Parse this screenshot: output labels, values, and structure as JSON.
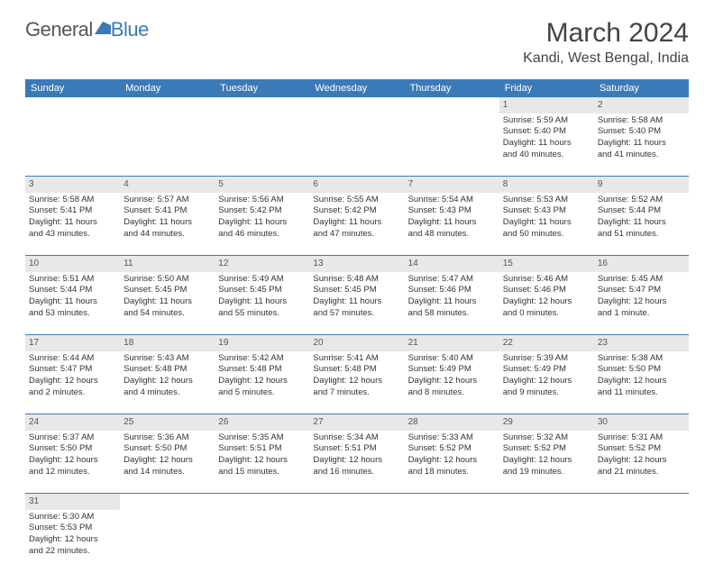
{
  "logo": {
    "text1": "General",
    "text2": "Blue"
  },
  "title": "March 2024",
  "location": "Kandi, West Bengal, India",
  "colors": {
    "header_bg": "#3b7ab8",
    "header_fg": "#ffffff",
    "daynum_bg": "#e8e8e8",
    "border": "#3b7ab8",
    "text": "#333333"
  },
  "weekdays": [
    "Sunday",
    "Monday",
    "Tuesday",
    "Wednesday",
    "Thursday",
    "Friday",
    "Saturday"
  ],
  "weeks": [
    [
      null,
      null,
      null,
      null,
      null,
      {
        "n": "1",
        "sr": "Sunrise: 5:59 AM",
        "ss": "Sunset: 5:40 PM",
        "dl1": "Daylight: 11 hours",
        "dl2": "and 40 minutes."
      },
      {
        "n": "2",
        "sr": "Sunrise: 5:58 AM",
        "ss": "Sunset: 5:40 PM",
        "dl1": "Daylight: 11 hours",
        "dl2": "and 41 minutes."
      }
    ],
    [
      {
        "n": "3",
        "sr": "Sunrise: 5:58 AM",
        "ss": "Sunset: 5:41 PM",
        "dl1": "Daylight: 11 hours",
        "dl2": "and 43 minutes."
      },
      {
        "n": "4",
        "sr": "Sunrise: 5:57 AM",
        "ss": "Sunset: 5:41 PM",
        "dl1": "Daylight: 11 hours",
        "dl2": "and 44 minutes."
      },
      {
        "n": "5",
        "sr": "Sunrise: 5:56 AM",
        "ss": "Sunset: 5:42 PM",
        "dl1": "Daylight: 11 hours",
        "dl2": "and 46 minutes."
      },
      {
        "n": "6",
        "sr": "Sunrise: 5:55 AM",
        "ss": "Sunset: 5:42 PM",
        "dl1": "Daylight: 11 hours",
        "dl2": "and 47 minutes."
      },
      {
        "n": "7",
        "sr": "Sunrise: 5:54 AM",
        "ss": "Sunset: 5:43 PM",
        "dl1": "Daylight: 11 hours",
        "dl2": "and 48 minutes."
      },
      {
        "n": "8",
        "sr": "Sunrise: 5:53 AM",
        "ss": "Sunset: 5:43 PM",
        "dl1": "Daylight: 11 hours",
        "dl2": "and 50 minutes."
      },
      {
        "n": "9",
        "sr": "Sunrise: 5:52 AM",
        "ss": "Sunset: 5:44 PM",
        "dl1": "Daylight: 11 hours",
        "dl2": "and 51 minutes."
      }
    ],
    [
      {
        "n": "10",
        "sr": "Sunrise: 5:51 AM",
        "ss": "Sunset: 5:44 PM",
        "dl1": "Daylight: 11 hours",
        "dl2": "and 53 minutes."
      },
      {
        "n": "11",
        "sr": "Sunrise: 5:50 AM",
        "ss": "Sunset: 5:45 PM",
        "dl1": "Daylight: 11 hours",
        "dl2": "and 54 minutes."
      },
      {
        "n": "12",
        "sr": "Sunrise: 5:49 AM",
        "ss": "Sunset: 5:45 PM",
        "dl1": "Daylight: 11 hours",
        "dl2": "and 55 minutes."
      },
      {
        "n": "13",
        "sr": "Sunrise: 5:48 AM",
        "ss": "Sunset: 5:45 PM",
        "dl1": "Daylight: 11 hours",
        "dl2": "and 57 minutes."
      },
      {
        "n": "14",
        "sr": "Sunrise: 5:47 AM",
        "ss": "Sunset: 5:46 PM",
        "dl1": "Daylight: 11 hours",
        "dl2": "and 58 minutes."
      },
      {
        "n": "15",
        "sr": "Sunrise: 5:46 AM",
        "ss": "Sunset: 5:46 PM",
        "dl1": "Daylight: 12 hours",
        "dl2": "and 0 minutes."
      },
      {
        "n": "16",
        "sr": "Sunrise: 5:45 AM",
        "ss": "Sunset: 5:47 PM",
        "dl1": "Daylight: 12 hours",
        "dl2": "and 1 minute."
      }
    ],
    [
      {
        "n": "17",
        "sr": "Sunrise: 5:44 AM",
        "ss": "Sunset: 5:47 PM",
        "dl1": "Daylight: 12 hours",
        "dl2": "and 2 minutes."
      },
      {
        "n": "18",
        "sr": "Sunrise: 5:43 AM",
        "ss": "Sunset: 5:48 PM",
        "dl1": "Daylight: 12 hours",
        "dl2": "and 4 minutes."
      },
      {
        "n": "19",
        "sr": "Sunrise: 5:42 AM",
        "ss": "Sunset: 5:48 PM",
        "dl1": "Daylight: 12 hours",
        "dl2": "and 5 minutes."
      },
      {
        "n": "20",
        "sr": "Sunrise: 5:41 AM",
        "ss": "Sunset: 5:48 PM",
        "dl1": "Daylight: 12 hours",
        "dl2": "and 7 minutes."
      },
      {
        "n": "21",
        "sr": "Sunrise: 5:40 AM",
        "ss": "Sunset: 5:49 PM",
        "dl1": "Daylight: 12 hours",
        "dl2": "and 8 minutes."
      },
      {
        "n": "22",
        "sr": "Sunrise: 5:39 AM",
        "ss": "Sunset: 5:49 PM",
        "dl1": "Daylight: 12 hours",
        "dl2": "and 9 minutes."
      },
      {
        "n": "23",
        "sr": "Sunrise: 5:38 AM",
        "ss": "Sunset: 5:50 PM",
        "dl1": "Daylight: 12 hours",
        "dl2": "and 11 minutes."
      }
    ],
    [
      {
        "n": "24",
        "sr": "Sunrise: 5:37 AM",
        "ss": "Sunset: 5:50 PM",
        "dl1": "Daylight: 12 hours",
        "dl2": "and 12 minutes."
      },
      {
        "n": "25",
        "sr": "Sunrise: 5:36 AM",
        "ss": "Sunset: 5:50 PM",
        "dl1": "Daylight: 12 hours",
        "dl2": "and 14 minutes."
      },
      {
        "n": "26",
        "sr": "Sunrise: 5:35 AM",
        "ss": "Sunset: 5:51 PM",
        "dl1": "Daylight: 12 hours",
        "dl2": "and 15 minutes."
      },
      {
        "n": "27",
        "sr": "Sunrise: 5:34 AM",
        "ss": "Sunset: 5:51 PM",
        "dl1": "Daylight: 12 hours",
        "dl2": "and 16 minutes."
      },
      {
        "n": "28",
        "sr": "Sunrise: 5:33 AM",
        "ss": "Sunset: 5:52 PM",
        "dl1": "Daylight: 12 hours",
        "dl2": "and 18 minutes."
      },
      {
        "n": "29",
        "sr": "Sunrise: 5:32 AM",
        "ss": "Sunset: 5:52 PM",
        "dl1": "Daylight: 12 hours",
        "dl2": "and 19 minutes."
      },
      {
        "n": "30",
        "sr": "Sunrise: 5:31 AM",
        "ss": "Sunset: 5:52 PM",
        "dl1": "Daylight: 12 hours",
        "dl2": "and 21 minutes."
      }
    ],
    [
      {
        "n": "31",
        "sr": "Sunrise: 5:30 AM",
        "ss": "Sunset: 5:53 PM",
        "dl1": "Daylight: 12 hours",
        "dl2": "and 22 minutes."
      },
      null,
      null,
      null,
      null,
      null,
      null
    ]
  ]
}
